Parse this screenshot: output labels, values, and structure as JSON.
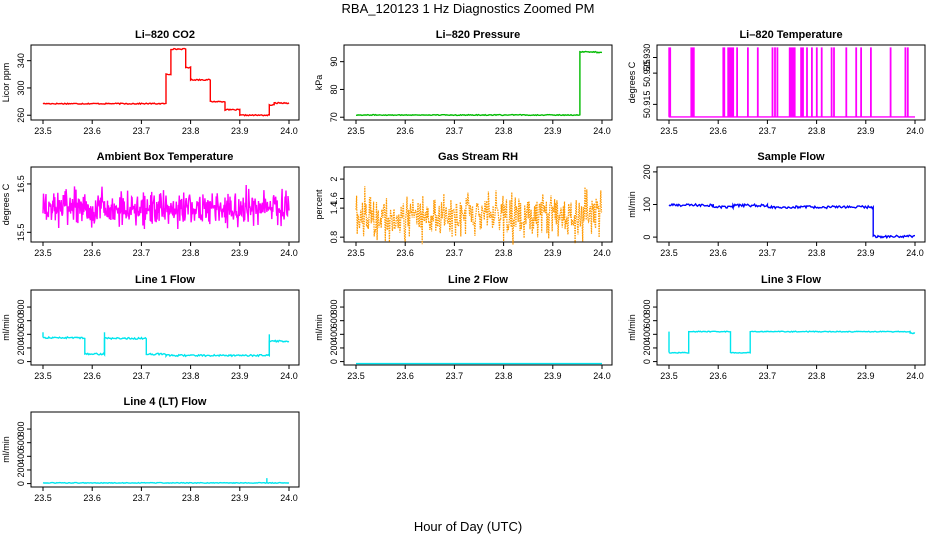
{
  "figure": {
    "title": "RBA_120123  1 Hz Diagnostics Zoomed PM",
    "xlabel": "Hour of Day (UTC)"
  },
  "chart_data": [
    {
      "id": "co2",
      "type": "line",
      "title": "Li–820 CO2",
      "ylabel": "Licor ppm",
      "color": "#ff0000",
      "xlim": [
        23.5,
        24.0
      ],
      "ylim": [
        253,
        363
      ],
      "xticks": [
        23.5,
        23.6,
        23.7,
        23.8,
        23.9,
        24.0
      ],
      "yticks": [
        260,
        300,
        340
      ],
      "series": [
        {
          "name": "CO2",
          "noise": 0.8,
          "segments": [
            [
              23.5,
              23.75,
              277
            ],
            [
              23.75,
              23.76,
              320
            ],
            [
              23.76,
              23.79,
              357
            ],
            [
              23.79,
              23.8,
              330
            ],
            [
              23.8,
              23.84,
              312
            ],
            [
              23.84,
              23.87,
              280
            ],
            [
              23.87,
              23.9,
              268
            ],
            [
              23.9,
              23.96,
              260
            ],
            [
              23.96,
              23.97,
              275
            ],
            [
              23.97,
              24.0,
              278
            ]
          ]
        }
      ]
    },
    {
      "id": "pressure",
      "type": "line",
      "title": "Li–820 Pressure",
      "ylabel": "kPa",
      "color": "#00bb00",
      "xlim": [
        23.5,
        24.0
      ],
      "ylim": [
        69,
        96
      ],
      "xticks": [
        23.5,
        23.6,
        23.7,
        23.8,
        23.9,
        24.0
      ],
      "yticks": [
        70,
        80,
        90
      ],
      "series": [
        {
          "name": "Pressure",
          "noise": 0.15,
          "segments": [
            [
              23.5,
              23.955,
              70.8
            ],
            [
              23.955,
              23.99,
              93.5
            ],
            [
              23.99,
              24.0,
              93.3
            ]
          ]
        }
      ]
    },
    {
      "id": "licor_temp",
      "type": "line",
      "title": "Li–820 Temperature",
      "ylabel": "degrees C",
      "color": "#ff00ff",
      "xlim": [
        23.5,
        24.0
      ],
      "ylim": [
        50.91,
        50.934
      ],
      "xticks": [
        23.5,
        23.6,
        23.7,
        23.8,
        23.9,
        24.0
      ],
      "yticks": [
        50.915,
        50.925,
        50.93
      ],
      "ytick_labels": [
        "50.915",
        "50.925",
        "50.930"
      ],
      "series": [
        {
          "name": "Temperature",
          "low": 50.911,
          "high": 50.933,
          "spikes": [
            23.5,
            23.502,
            23.545,
            23.548,
            23.55,
            23.61,
            23.612,
            23.62,
            23.622,
            23.625,
            23.628,
            23.63,
            23.638,
            23.66,
            23.68,
            23.71,
            23.715,
            23.72,
            23.745,
            23.748,
            23.75,
            23.752,
            23.755,
            23.768,
            23.77,
            23.772,
            23.78,
            23.79,
            23.8,
            23.81,
            23.83,
            23.835,
            23.86,
            23.88,
            23.89,
            23.91,
            23.95,
            23.98,
            23.985
          ]
        }
      ]
    },
    {
      "id": "ambient_temp",
      "type": "line",
      "title": "Ambient Box Temperature",
      "ylabel": "degrees C",
      "color": "#ff00ff",
      "xlim": [
        23.5,
        24.0
      ],
      "ylim": [
        15.3,
        16.85
      ],
      "xticks": [
        23.5,
        23.6,
        23.7,
        23.8,
        23.9,
        24.0
      ],
      "yticks": [
        15.5,
        16.5
      ],
      "series": [
        {
          "name": "Ambient",
          "base": 16.0,
          "spread": 0.33,
          "n": 500
        }
      ]
    },
    {
      "id": "rh",
      "type": "line",
      "title": "Gas Stream RH",
      "ylabel": "percent",
      "color": "#ff9900",
      "dotted": true,
      "xlim": [
        23.5,
        24.0
      ],
      "ylim": [
        0.7,
        2.25
      ],
      "xticks": [
        23.5,
        23.6,
        23.7,
        23.8,
        23.9,
        24.0
      ],
      "yticks": [
        0.8,
        1.4,
        1.6,
        2.0
      ],
      "series": [
        {
          "name": "RH",
          "base": 1.25,
          "spread": 0.45,
          "n": 420
        }
      ]
    },
    {
      "id": "sample_flow",
      "type": "line",
      "title": "Sample Flow",
      "ylabel": "ml/min",
      "color": "#0000ff",
      "xlim": [
        23.5,
        24.0
      ],
      "ylim": [
        -15,
        215
      ],
      "xticks": [
        23.5,
        23.6,
        23.7,
        23.8,
        23.9,
        24.0
      ],
      "yticks": [
        0,
        100,
        200
      ],
      "series": [
        {
          "name": "Sample",
          "noise": 4,
          "segments": [
            [
              23.5,
              23.59,
              98
            ],
            [
              23.59,
              23.63,
              92
            ],
            [
              23.63,
              23.7,
              97
            ],
            [
              23.7,
              23.915,
              92
            ],
            [
              23.915,
              24.0,
              2
            ]
          ]
        }
      ]
    },
    {
      "id": "line1",
      "type": "line",
      "title": "Line 1 Flow",
      "ylabel": "ml/min",
      "color": "#00e5ee",
      "xlim": [
        23.5,
        24.0
      ],
      "ylim": [
        -50,
        1050
      ],
      "xticks": [
        23.5,
        23.6,
        23.7,
        23.8,
        23.9,
        24.0
      ],
      "yticks": [
        0,
        200,
        400,
        600,
        800
      ],
      "series": [
        {
          "name": "Line 1",
          "noise": 12,
          "segments": [
            [
              23.5,
              23.585,
              350
            ],
            [
              23.585,
              23.625,
              110
            ],
            [
              23.625,
              23.71,
              340
            ],
            [
              23.71,
              23.75,
              110
            ],
            [
              23.75,
              23.96,
              90
            ],
            [
              23.96,
              24.0,
              300
            ]
          ],
          "spikes": [
            [
              23.5,
              430
            ],
            [
              23.625,
              430
            ],
            [
              23.96,
              400
            ]
          ]
        }
      ]
    },
    {
      "id": "line2",
      "type": "line",
      "title": "Line 2 Flow",
      "ylabel": "ml/min",
      "color": "#00e5ee",
      "xlim": [
        23.5,
        24.0
      ],
      "ylim": [
        -50,
        1050
      ],
      "xticks": [
        23.5,
        23.6,
        23.7,
        23.8,
        23.9,
        24.0
      ],
      "yticks": [
        0,
        200,
        400,
        600,
        800
      ],
      "series": [
        {
          "name": "Line 2",
          "noise": 0,
          "segments": [
            [
              23.5,
              24.0,
              -30
            ]
          ]
        }
      ]
    },
    {
      "id": "line3",
      "type": "line",
      "title": "Line 3 Flow",
      "ylabel": "ml/min",
      "color": "#00e5ee",
      "xlim": [
        23.5,
        24.0
      ],
      "ylim": [
        -50,
        1050
      ],
      "xticks": [
        23.5,
        23.6,
        23.7,
        23.8,
        23.9,
        24.0
      ],
      "yticks": [
        0,
        200,
        400,
        600,
        800
      ],
      "series": [
        {
          "name": "Line 3",
          "noise": 6,
          "segments": [
            [
              23.5,
              23.54,
              130
            ],
            [
              23.54,
              23.625,
              440
            ],
            [
              23.625,
              23.665,
              130
            ],
            [
              23.665,
              23.99,
              440
            ],
            [
              23.99,
              24.0,
              415
            ]
          ],
          "spikes": [
            [
              23.5,
              440
            ]
          ]
        }
      ]
    },
    {
      "id": "line4",
      "type": "line",
      "title": "Line 4 (LT) Flow",
      "ylabel": "ml/min",
      "color": "#00e5ee",
      "xlim": [
        23.5,
        24.0
      ],
      "ylim": [
        -50,
        1050
      ],
      "xticks": [
        23.5,
        23.6,
        23.7,
        23.8,
        23.9,
        24.0
      ],
      "yticks": [
        0,
        200,
        400,
        600,
        800
      ],
      "series": [
        {
          "name": "Line 4",
          "noise": 5,
          "segments": [
            [
              23.5,
              24.0,
              10
            ]
          ],
          "spikes": [
            [
              23.955,
              80
            ]
          ]
        }
      ]
    }
  ]
}
